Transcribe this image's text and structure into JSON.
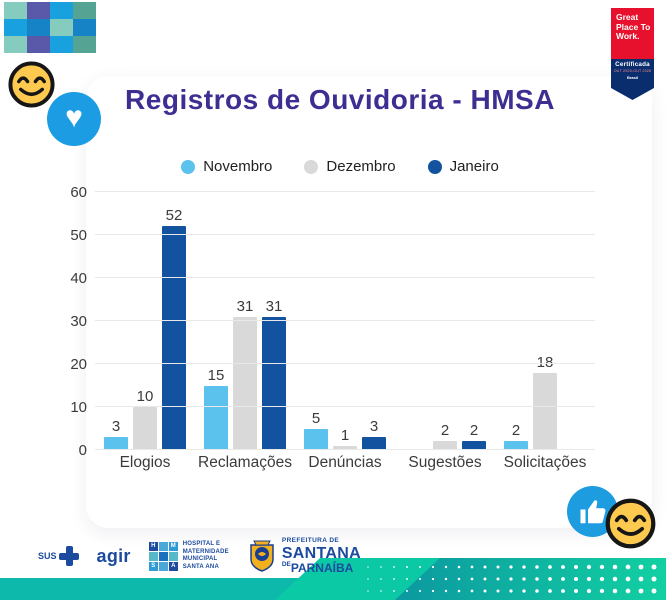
{
  "header": {
    "title": "Registros de Ouvidoria - HMSA",
    "title_color": "#3d2e91"
  },
  "chart_data": {
    "type": "bar",
    "title": "Registros de Ouvidoria - HMSA",
    "categories": [
      "Elogios",
      "Reclamações",
      "Denúncias",
      "Sugestões",
      "Solicitações"
    ],
    "series": [
      {
        "name": "Novembro",
        "color": "#5bc2ee",
        "values": [
          3,
          15,
          5,
          null,
          2
        ]
      },
      {
        "name": "Dezembro",
        "color": "#d9d9d9",
        "values": [
          10,
          31,
          1,
          2,
          18
        ]
      },
      {
        "name": "Janeiro",
        "color": "#12529f",
        "values": [
          52,
          31,
          3,
          2,
          null
        ]
      }
    ],
    "ylabel": "",
    "xlabel": "",
    "ylim": [
      0,
      60
    ],
    "yticks": [
      0,
      10,
      20,
      30,
      40,
      50,
      60
    ],
    "grid": true,
    "legend_position": "top",
    "value_labels": true
  },
  "badge": {
    "title": "Great Place To Work.",
    "certified_label": "Certificada",
    "period": "OUT 2025-OUT 2026",
    "country": "Brasil",
    "red": "#e8112d",
    "navy": "#0a2d6e"
  },
  "icons": {
    "heart": "♥",
    "smiley_top": "smiling-face",
    "smiley_bottom": "smiling-face",
    "thumbs_up": "thumbs-up"
  },
  "footer": {
    "sus_label": "SUS",
    "agir_label": "agir",
    "hmsa_letters": [
      "H",
      "M",
      "S",
      "A"
    ],
    "hmsa_name": "HOSPITAL E\nMATERNIDADE\nMUNICIPAL\nSANTA ANA",
    "prefeitura_line1": "PREFEITURA DE",
    "prefeitura_line2": "SANTANA",
    "prefeitura_line3_small": "DE",
    "prefeitura_line3": "PARNAÍBA"
  },
  "decor": {
    "mosaic": [
      [
        "#85cbbe",
        "#5a58a8",
        "#18a0df",
        "#55a392"
      ],
      [
        "#18a0df",
        "#1583c5",
        "#85cbbe",
        "#1583c5"
      ],
      [
        "#85cbbe",
        "#5a58a8",
        "#18a0df",
        "#55a392"
      ]
    ],
    "band_left": "#0cb9ab",
    "band_bright": "#0cc9a6",
    "band_dark_start": "#0b8fa0",
    "band_dark_end": "#12d0a2",
    "dot_color": "#ffffff"
  }
}
